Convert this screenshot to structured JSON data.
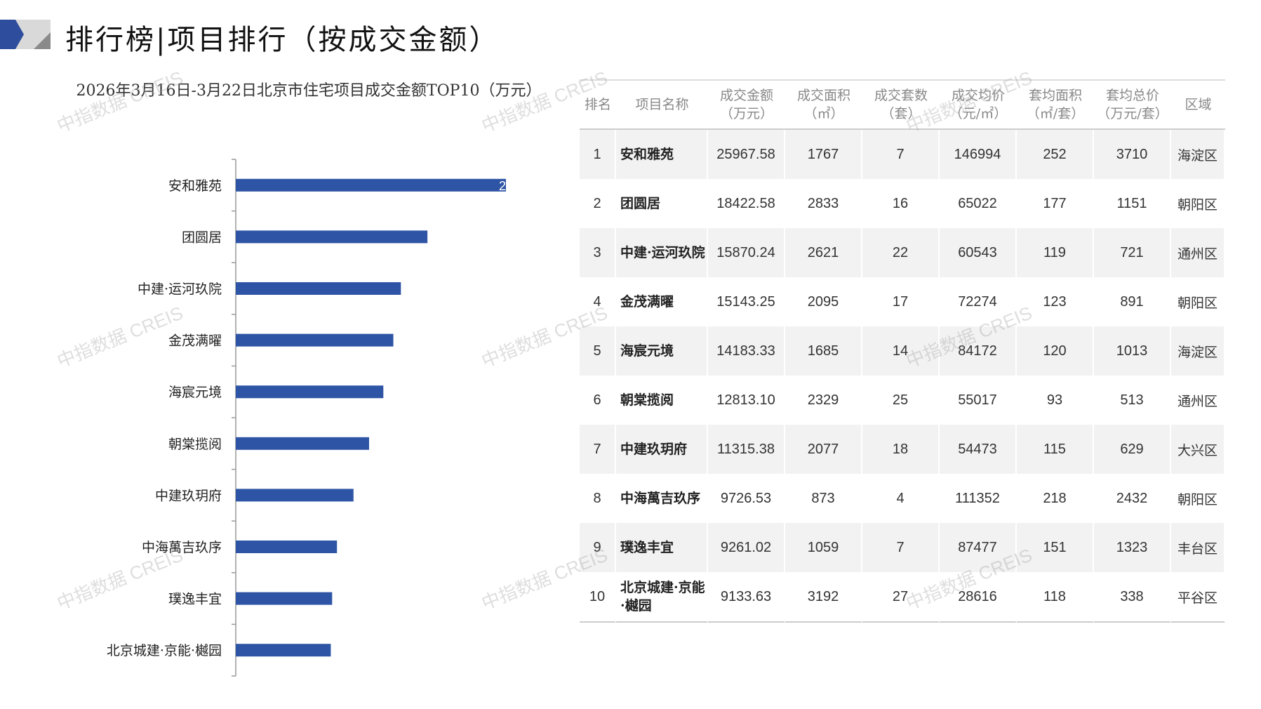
{
  "header": {
    "title": "排行榜|项目排行（按成交金额）"
  },
  "colors": {
    "bar": "#2e55a5",
    "logo_blue": "#2e4d9c",
    "logo_grey": "#8a8a8a"
  },
  "watermark": "中指数据 CREIS",
  "chart_data": {
    "type": "bar",
    "orientation": "horizontal",
    "title": "2026年3月16日-3月22日北京市住宅项目成交金额TOP10（万元）",
    "categories": [
      "安和雅苑",
      "团圆居",
      "中建·运河玖院",
      "金茂满曜",
      "海宸元境",
      "朝棠揽阅",
      "中建玖玥府",
      "中海萬吉玖序",
      "璞逸丰宜",
      "北京城建·京能·樾园"
    ],
    "values": [
      25967.58,
      18422.58,
      15870.24,
      15143.25,
      14183.33,
      12813.1,
      11315.38,
      9726.53,
      9261.02,
      9133.63
    ],
    "visible_data_label": "2",
    "grid": false
  },
  "table": {
    "headers": [
      "排名",
      "项目名称",
      "成交金额\n（万元）",
      "成交面积\n（㎡）",
      "成交套数\n（套）",
      "成交均价\n（元/㎡）",
      "套均面积\n（㎡/套）",
      "套均总价\n（万元/套）",
      "区域"
    ],
    "rows": [
      [
        "1",
        "安和雅苑",
        "25967.58",
        "1767",
        "7",
        "146994",
        "252",
        "3710",
        "海淀区"
      ],
      [
        "2",
        "团圆居",
        "18422.58",
        "2833",
        "16",
        "65022",
        "177",
        "1151",
        "朝阳区"
      ],
      [
        "3",
        "中建·运河玖院",
        "15870.24",
        "2621",
        "22",
        "60543",
        "119",
        "721",
        "通州区"
      ],
      [
        "4",
        "金茂满曜",
        "15143.25",
        "2095",
        "17",
        "72274",
        "123",
        "891",
        "朝阳区"
      ],
      [
        "5",
        "海宸元境",
        "14183.33",
        "1685",
        "14",
        "84172",
        "120",
        "1013",
        "海淀区"
      ],
      [
        "6",
        "朝棠揽阅",
        "12813.10",
        "2329",
        "25",
        "55017",
        "93",
        "513",
        "通州区"
      ],
      [
        "7",
        "中建玖玥府",
        "11315.38",
        "2077",
        "18",
        "54473",
        "115",
        "629",
        "大兴区"
      ],
      [
        "8",
        "中海萬吉玖序",
        "9726.53",
        "873",
        "4",
        "111352",
        "218",
        "2432",
        "朝阳区"
      ],
      [
        "9",
        "璞逸丰宜",
        "9261.02",
        "1059",
        "7",
        "87477",
        "151",
        "1323",
        "丰台区"
      ],
      [
        "10",
        "北京城建·京能·樾园",
        "9133.63",
        "3192",
        "27",
        "28616",
        "118",
        "338",
        "平谷区"
      ]
    ]
  }
}
